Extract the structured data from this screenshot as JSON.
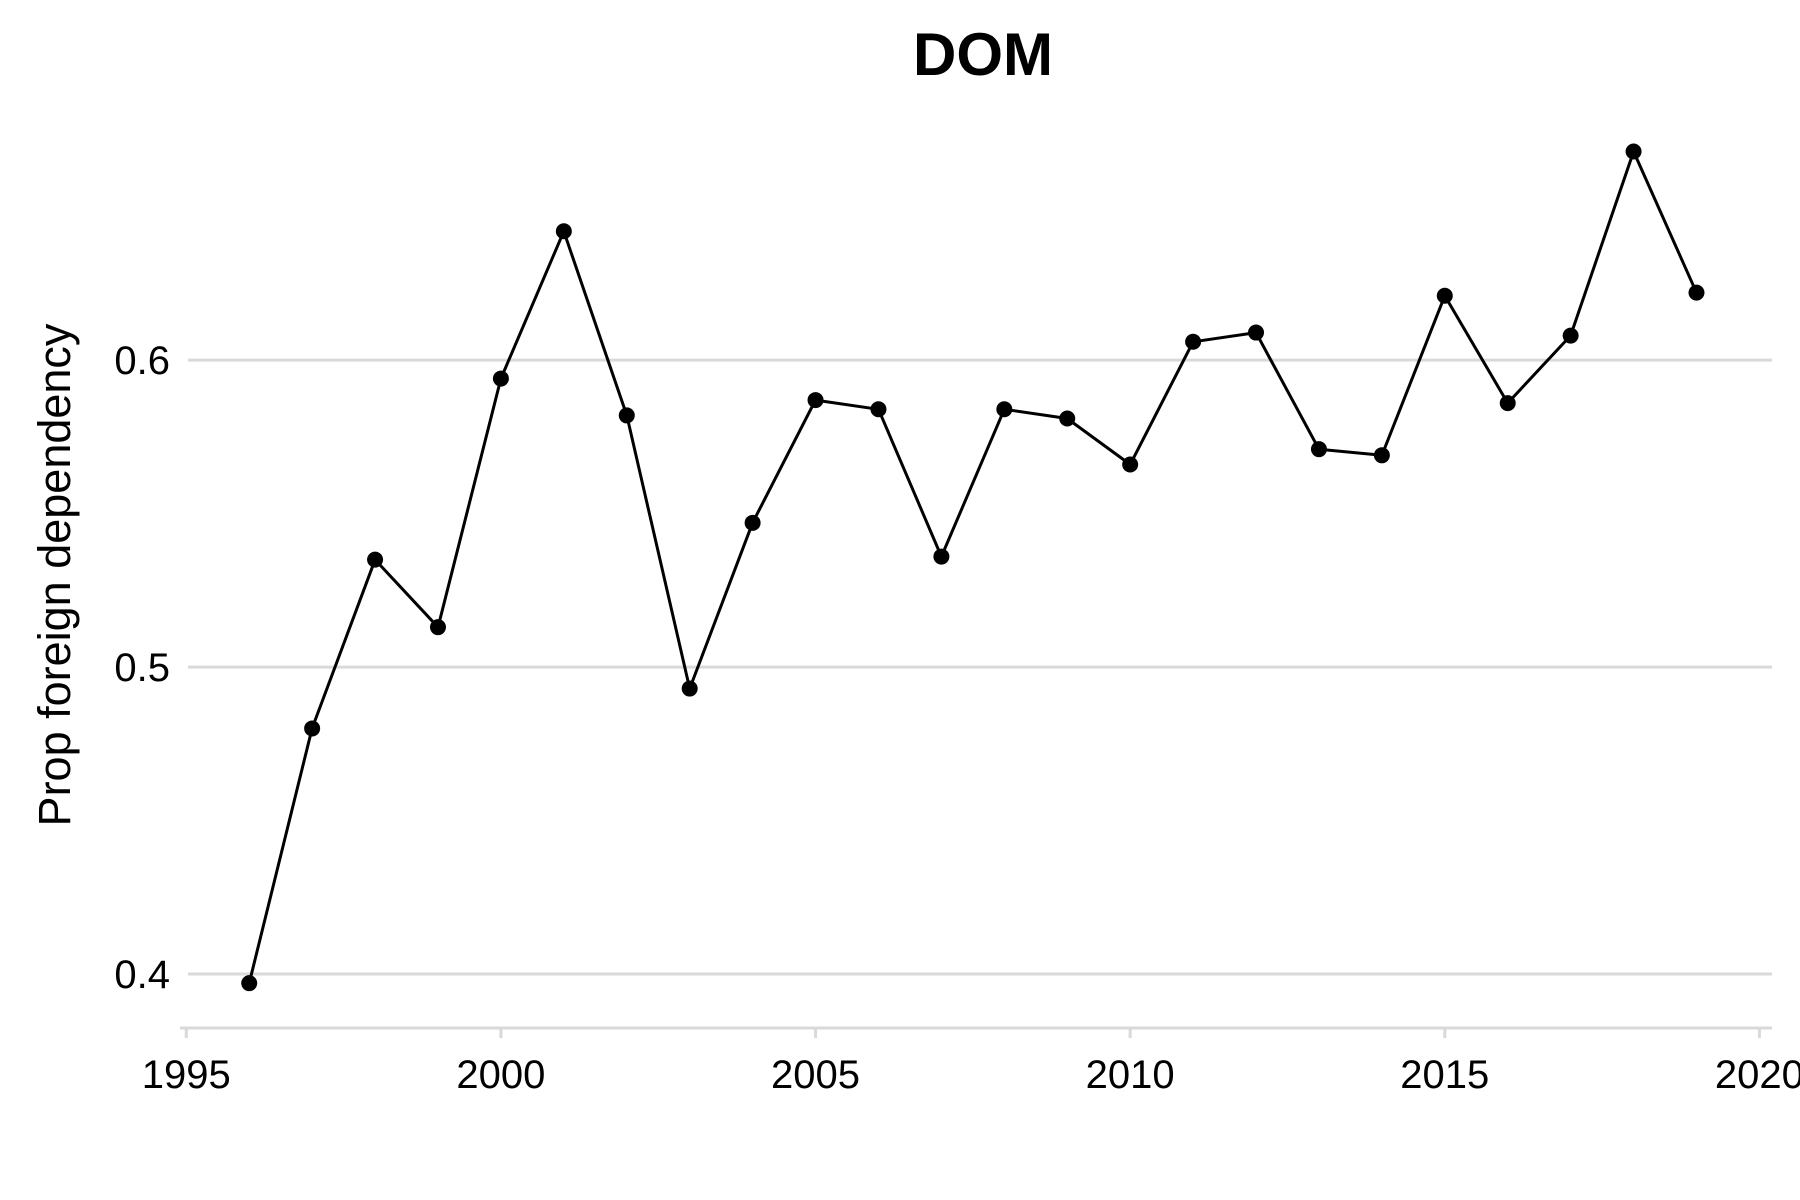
{
  "chart_data": {
    "type": "line",
    "title": "DOM",
    "xlabel": "",
    "ylabel": "Prop foreign dependency",
    "xlim": [
      1994.9,
      2020.2
    ],
    "ylim": [
      0.385,
      0.675
    ],
    "xticks": [
      1995,
      2000,
      2005,
      2010,
      2015,
      2020
    ],
    "xtick_labels": [
      "1995",
      "2000",
      "2005",
      "2010",
      "2015",
      "2020"
    ],
    "yticks": [
      0.4,
      0.5,
      0.6
    ],
    "ytick_labels": [
      "0.4",
      "0.5",
      "0.6"
    ],
    "grid": "horizontal",
    "legend": "none",
    "colors": {
      "line": "#000000",
      "grid": "#d9d9d9"
    },
    "series": [
      {
        "x": [
          1996,
          1997,
          1998,
          1999,
          2000,
          2001,
          2002,
          2003,
          2004,
          2005,
          2006,
          2007,
          2008,
          2009,
          2010,
          2011,
          2012,
          2013,
          2014,
          2015,
          2016,
          2017,
          2018,
          2019
        ],
        "y": [
          0.397,
          0.48,
          0.535,
          0.513,
          0.594,
          0.642,
          0.582,
          0.493,
          0.547,
          0.587,
          0.584,
          0.536,
          0.584,
          0.581,
          0.566,
          0.606,
          0.609,
          0.571,
          0.569,
          0.621,
          0.586,
          0.608,
          0.668,
          0.622
        ]
      }
    ]
  }
}
